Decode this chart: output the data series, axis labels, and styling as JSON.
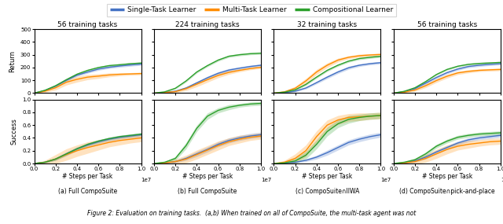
{
  "titles_top": [
    "56 training tasks",
    "224 training tasks",
    "32 training tasks",
    "56 training tasks"
  ],
  "subtitles_bottom": [
    "(a) Full CompoSuite",
    "(b) Full CompoSuite",
    "(c) CompoSuite∩IIWA",
    "(d) CompoSuite∩pick-and-place"
  ],
  "legend_labels": [
    "Single-Task Learner",
    "Multi-Task Learner",
    "Compositional Learner"
  ],
  "colors": {
    "single": "#4472C4",
    "multi": "#FF8C00",
    "comp": "#2CA02C"
  },
  "x_max": 10000000.0,
  "panels": [
    {
      "id": "a",
      "return_ylim": [
        0,
        500
      ],
      "return_yticks": [
        0,
        100,
        200,
        300,
        400,
        500
      ],
      "success_ylim": [
        0,
        1.0
      ],
      "success_yticks": [
        0.0,
        0.2,
        0.4,
        0.6,
        0.8,
        1.0
      ],
      "return": {
        "single": {
          "mean": [
            0,
            20,
            55,
            100,
            140,
            165,
            188,
            202,
            212,
            220,
            227
          ],
          "std": [
            0,
            5,
            8,
            10,
            10,
            10,
            10,
            10,
            10,
            10,
            10
          ]
        },
        "multi": {
          "mean": [
            0,
            15,
            42,
            85,
            108,
            125,
            133,
            142,
            147,
            150,
            153
          ],
          "std": [
            0,
            10,
            18,
            22,
            22,
            20,
            18,
            15,
            12,
            10,
            10
          ]
        },
        "comp": {
          "mean": [
            0,
            22,
            58,
            105,
            148,
            178,
            200,
            215,
            222,
            230,
            235
          ],
          "std": [
            0,
            4,
            6,
            7,
            7,
            7,
            7,
            7,
            7,
            7,
            7
          ]
        }
      },
      "success": {
        "single": {
          "mean": [
            0,
            0.02,
            0.07,
            0.15,
            0.23,
            0.29,
            0.34,
            0.38,
            0.41,
            0.43,
            0.45
          ],
          "std": [
            0,
            0.01,
            0.02,
            0.03,
            0.03,
            0.03,
            0.03,
            0.03,
            0.03,
            0.03,
            0.03
          ]
        },
        "multi": {
          "mean": [
            0,
            0.02,
            0.07,
            0.14,
            0.2,
            0.25,
            0.29,
            0.33,
            0.36,
            0.38,
            0.4
          ],
          "std": [
            0,
            0.03,
            0.07,
            0.09,
            0.09,
            0.09,
            0.08,
            0.07,
            0.07,
            0.06,
            0.06
          ]
        },
        "comp": {
          "mean": [
            0,
            0.02,
            0.07,
            0.15,
            0.23,
            0.3,
            0.35,
            0.39,
            0.42,
            0.44,
            0.46
          ],
          "std": [
            0,
            0.01,
            0.02,
            0.02,
            0.02,
            0.02,
            0.02,
            0.02,
            0.02,
            0.02,
            0.02
          ]
        }
      }
    },
    {
      "id": "b",
      "return_ylim": [
        0,
        500
      ],
      "return_yticks": [
        0,
        100,
        200,
        300,
        400,
        500
      ],
      "success_ylim": [
        0,
        1.0
      ],
      "success_yticks": [
        0.0,
        0.2,
        0.4,
        0.6,
        0.8,
        1.0
      ],
      "return": {
        "single": {
          "mean": [
            0,
            5,
            15,
            40,
            80,
            120,
            155,
            180,
            195,
            208,
            218
          ],
          "std": [
            0,
            3,
            5,
            8,
            10,
            12,
            12,
            12,
            10,
            10,
            10
          ]
        },
        "multi": {
          "mean": [
            0,
            5,
            12,
            35,
            70,
            105,
            138,
            162,
            178,
            192,
            202
          ],
          "std": [
            0,
            5,
            10,
            15,
            20,
            20,
            18,
            15,
            12,
            10,
            10
          ]
        },
        "comp": {
          "mean": [
            0,
            10,
            38,
            95,
            165,
            215,
            258,
            288,
            300,
            308,
            312
          ],
          "std": [
            0,
            4,
            7,
            9,
            9,
            9,
            9,
            9,
            9,
            9,
            9
          ]
        }
      },
      "success": {
        "single": {
          "mean": [
            0,
            0.01,
            0.03,
            0.08,
            0.15,
            0.22,
            0.3,
            0.36,
            0.4,
            0.43,
            0.45
          ],
          "std": [
            0,
            0.01,
            0.02,
            0.03,
            0.04,
            0.04,
            0.04,
            0.04,
            0.04,
            0.04,
            0.04
          ]
        },
        "multi": {
          "mean": [
            0,
            0.01,
            0.03,
            0.07,
            0.14,
            0.21,
            0.28,
            0.34,
            0.38,
            0.41,
            0.43
          ],
          "std": [
            0,
            0.02,
            0.04,
            0.06,
            0.07,
            0.07,
            0.07,
            0.06,
            0.06,
            0.05,
            0.05
          ]
        },
        "comp": {
          "mean": [
            0,
            0.02,
            0.08,
            0.28,
            0.55,
            0.74,
            0.83,
            0.88,
            0.91,
            0.93,
            0.94
          ],
          "std": [
            0,
            0.01,
            0.03,
            0.05,
            0.05,
            0.05,
            0.04,
            0.04,
            0.03,
            0.03,
            0.03
          ]
        }
      }
    },
    {
      "id": "c",
      "return_ylim": [
        0,
        500
      ],
      "return_yticks": [
        0,
        100,
        200,
        300,
        400,
        500
      ],
      "success_ylim": [
        0,
        1.0
      ],
      "success_yticks": [
        0.0,
        0.2,
        0.4,
        0.6,
        0.8,
        1.0
      ],
      "return": {
        "single": {
          "mean": [
            0,
            5,
            15,
            40,
            82,
            125,
            165,
            198,
            218,
            230,
            238
          ],
          "std": [
            0,
            3,
            5,
            8,
            10,
            12,
            12,
            12,
            10,
            10,
            10
          ]
        },
        "multi": {
          "mean": [
            0,
            10,
            38,
            95,
            165,
            218,
            258,
            280,
            292,
            298,
            302
          ],
          "std": [
            0,
            8,
            15,
            20,
            20,
            18,
            15,
            12,
            12,
            10,
            10
          ]
        },
        "comp": {
          "mean": [
            0,
            8,
            26,
            68,
            125,
            178,
            218,
            250,
            270,
            280,
            288
          ],
          "std": [
            0,
            4,
            7,
            9,
            9,
            9,
            9,
            9,
            9,
            9,
            9
          ]
        }
      },
      "success": {
        "single": {
          "mean": [
            0,
            0.01,
            0.02,
            0.05,
            0.1,
            0.17,
            0.25,
            0.33,
            0.38,
            0.42,
            0.45
          ],
          "std": [
            0,
            0.01,
            0.01,
            0.02,
            0.03,
            0.04,
            0.04,
            0.04,
            0.04,
            0.04,
            0.04
          ]
        },
        "multi": {
          "mean": [
            0,
            0.02,
            0.08,
            0.2,
            0.42,
            0.6,
            0.68,
            0.72,
            0.73,
            0.74,
            0.75
          ],
          "std": [
            0,
            0.03,
            0.07,
            0.09,
            0.09,
            0.08,
            0.07,
            0.06,
            0.06,
            0.05,
            0.05
          ]
        },
        "comp": {
          "mean": [
            0,
            0.01,
            0.04,
            0.13,
            0.3,
            0.5,
            0.62,
            0.69,
            0.72,
            0.74,
            0.75
          ],
          "std": [
            0,
            0.02,
            0.04,
            0.06,
            0.07,
            0.07,
            0.06,
            0.06,
            0.05,
            0.05,
            0.05
          ]
        }
      }
    },
    {
      "id": "d",
      "return_ylim": [
        0,
        500
      ],
      "return_yticks": [
        0,
        100,
        200,
        300,
        400,
        500
      ],
      "success_ylim": [
        0,
        1.0
      ],
      "success_yticks": [
        0.0,
        0.2,
        0.4,
        0.6,
        0.8,
        1.0
      ],
      "return": {
        "single": {
          "mean": [
            0,
            12,
            35,
            78,
            122,
            160,
            188,
            208,
            218,
            225,
            230
          ],
          "std": [
            0,
            5,
            8,
            10,
            10,
            10,
            10,
            10,
            10,
            10,
            10
          ]
        },
        "multi": {
          "mean": [
            0,
            8,
            24,
            58,
            98,
            132,
            158,
            170,
            178,
            182,
            185
          ],
          "std": [
            0,
            5,
            10,
            15,
            15,
            15,
            13,
            12,
            10,
            10,
            10
          ]
        },
        "comp": {
          "mean": [
            0,
            14,
            42,
            90,
            145,
            185,
            210,
            225,
            232,
            236,
            240
          ],
          "std": [
            0,
            4,
            6,
            7,
            7,
            7,
            7,
            7,
            7,
            7,
            7
          ]
        }
      },
      "success": {
        "single": {
          "mean": [
            0,
            0.01,
            0.04,
            0.1,
            0.18,
            0.25,
            0.32,
            0.37,
            0.4,
            0.42,
            0.44
          ],
          "std": [
            0,
            0.01,
            0.02,
            0.03,
            0.03,
            0.03,
            0.03,
            0.03,
            0.03,
            0.03,
            0.03
          ]
        },
        "multi": {
          "mean": [
            0,
            0.01,
            0.03,
            0.08,
            0.15,
            0.22,
            0.27,
            0.3,
            0.32,
            0.34,
            0.35
          ],
          "std": [
            0,
            0.02,
            0.04,
            0.06,
            0.07,
            0.07,
            0.06,
            0.06,
            0.05,
            0.05,
            0.05
          ]
        },
        "comp": {
          "mean": [
            0,
            0.02,
            0.06,
            0.15,
            0.27,
            0.35,
            0.41,
            0.44,
            0.46,
            0.47,
            0.48
          ],
          "std": [
            0,
            0.01,
            0.02,
            0.03,
            0.03,
            0.03,
            0.03,
            0.03,
            0.03,
            0.03,
            0.03
          ]
        }
      }
    }
  ],
  "caption": "Figure 2: Evaluation on training tasks.  (a,b) When trained on all of CompoSuite, the multi-task agent was not"
}
